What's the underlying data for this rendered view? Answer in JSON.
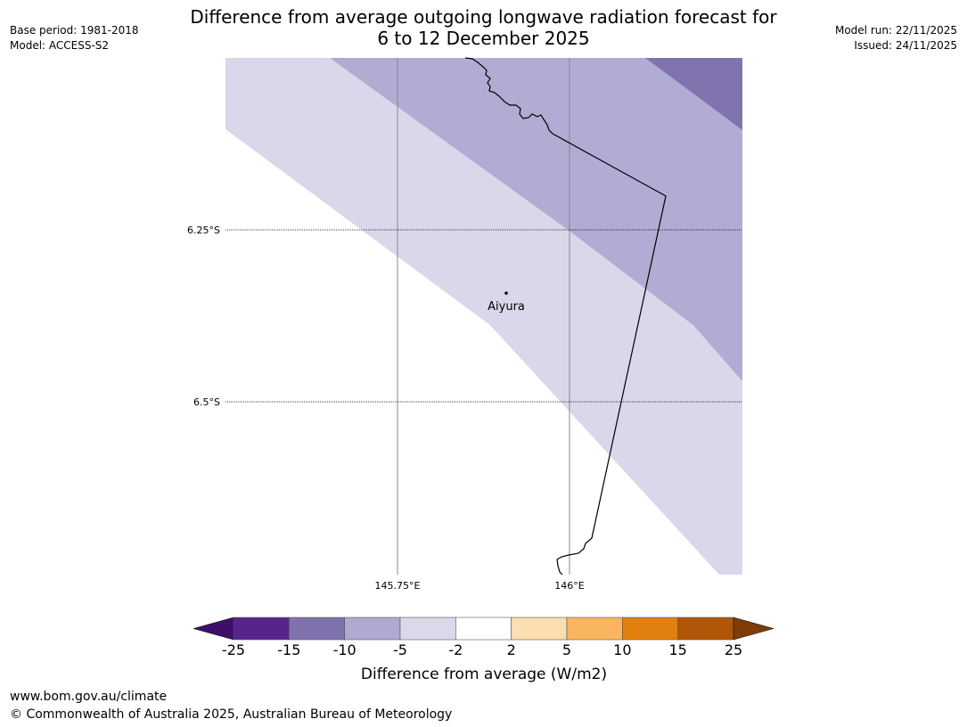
{
  "header": {
    "title_line1": "Difference from average outgoing longwave radiation forecast for",
    "title_line2": "6 to 12 December 2025",
    "base_period": "Base period: 1981-2018",
    "model": "Model: ACCESS-S2",
    "model_run": "Model run: 22/11/2025",
    "issued": "Issued: 24/11/2025"
  },
  "map": {
    "place_label": "Aiyura",
    "lat_labels": [
      "6.25°S",
      "6.5°S"
    ],
    "lon_labels": [
      "145.75°E",
      "146°E"
    ],
    "fill_colors": {
      "band_-2_to_-5": "#d8d8ea",
      "band_-5_to_-10": "#b1acd3",
      "band_-10_to_-15": "#8174ae"
    }
  },
  "colorbar": {
    "label": "Difference from average (W/m2)",
    "ticks": [
      "-25",
      "-15",
      "-10",
      "-5",
      "-2",
      "2",
      "5",
      "10",
      "15",
      "25"
    ],
    "colors": [
      "#3f0e6b",
      "#58248b",
      "#8073ad",
      "#b0aad2",
      "#d9d9ea",
      "#ffffff",
      "#fdddb2",
      "#fbb55f",
      "#e1800f",
      "#b05606",
      "#7f3b08"
    ]
  },
  "footer": {
    "url": "www.bom.gov.au/climate",
    "copyright": "© Commonwealth of Australia 2025, Australian Bureau of Meteorology"
  }
}
